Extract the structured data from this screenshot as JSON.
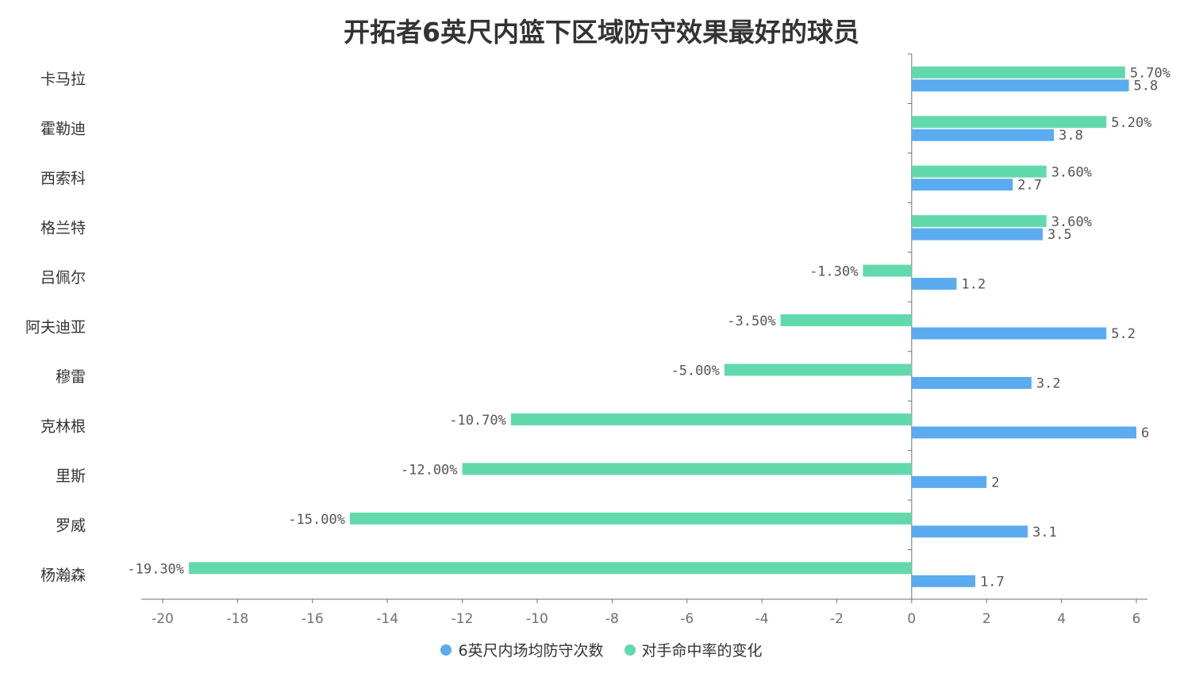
{
  "chart_data": {
    "type": "bar",
    "orientation": "horizontal",
    "title": "开拓者6英尺内篮下区域防守效果最好的球员",
    "categories": [
      "卡马拉",
      "霍勒迪",
      "西索科",
      "格兰特",
      "吕佩尔",
      "阿夫迪亚",
      "穆雷",
      "克林根",
      "里斯",
      "罗威",
      "杨瀚森"
    ],
    "series": [
      {
        "name": "6英尺内场均防守次数",
        "color": "#5aabf0",
        "values": [
          5.8,
          3.8,
          2.7,
          3.5,
          1.2,
          5.2,
          3.2,
          6,
          2,
          3.1,
          1.7
        ],
        "labels": [
          "5.8",
          "3.8",
          "2.7",
          "3.5",
          "1.2",
          "5.2",
          "3.2",
          "6",
          "2",
          "3.1",
          "1.7"
        ]
      },
      {
        "name": "对手命中率的变化",
        "color": "#62d9ad",
        "values": [
          5.7,
          5.2,
          3.6,
          3.6,
          -1.3,
          -3.5,
          -5.0,
          -10.7,
          -12.0,
          -15.0,
          -19.3
        ],
        "labels": [
          "5.70%",
          "5.20%",
          "3.60%",
          "3.60%",
          "-1.30%",
          "-3.50%",
          "-5.00%",
          "-10.70%",
          "-12.00%",
          "-15.00%",
          "-19.30%"
        ]
      }
    ],
    "xlim": [
      -20,
      6
    ],
    "xticks": [
      "-20",
      "-18",
      "-16",
      "-14",
      "-12",
      "-10",
      "-8",
      "-6",
      "-4",
      "-2",
      "0",
      "2",
      "4",
      "6"
    ],
    "legend_position": "bottom",
    "grid": false
  }
}
